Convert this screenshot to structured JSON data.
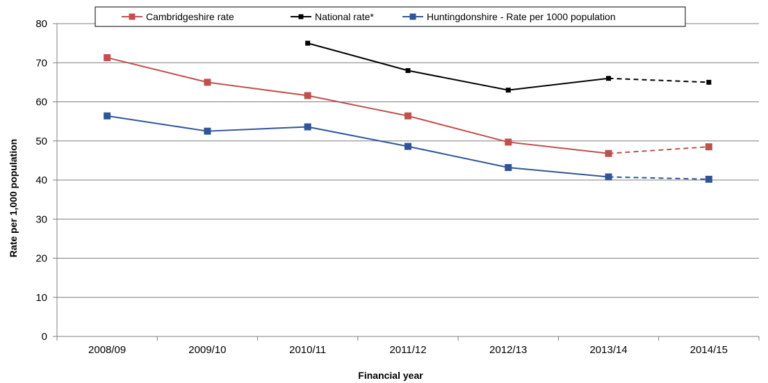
{
  "chart_data": {
    "type": "line",
    "title": "",
    "xlabel": "Financial year",
    "ylabel": "Rate per 1,000 population",
    "ylim": [
      0,
      80
    ],
    "yticks": [
      0,
      10,
      20,
      30,
      40,
      50,
      60,
      70,
      80
    ],
    "categories": [
      "2008/09",
      "2009/10",
      "2010/11",
      "2011/12",
      "2012/13",
      "2013/14",
      "2014/15"
    ],
    "grid": "horizontal",
    "legend_position": "top",
    "series": [
      {
        "name": "Cambridgeshire rate",
        "color": "#c0504d",
        "marker": "square",
        "values": [
          71.3,
          65.0,
          61.6,
          56.4,
          49.7,
          46.8,
          48.5
        ],
        "dashed_from_index": 5
      },
      {
        "name": "National rate*",
        "color": "#000000",
        "marker": "small-square",
        "values": [
          null,
          null,
          75.0,
          68.0,
          63.0,
          66.0,
          65.0
        ],
        "dashed_from_index": 5
      },
      {
        "name": "Huntingdonshire - Rate per 1000 population",
        "color": "#2f5597",
        "marker": "square",
        "values": [
          56.4,
          52.5,
          53.6,
          48.6,
          43.2,
          40.8,
          40.2
        ],
        "dashed_from_index": 5
      }
    ]
  }
}
